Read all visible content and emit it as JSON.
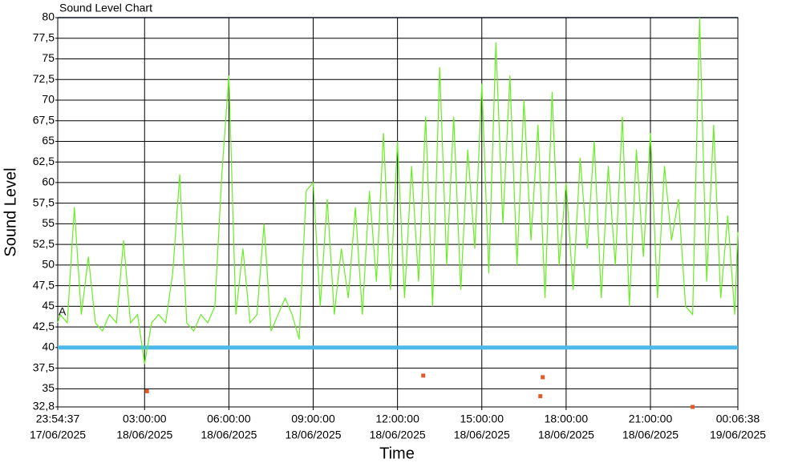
{
  "chart_data": {
    "type": "line",
    "title": "Sound Level Chart",
    "ylabel": "Sound Level",
    "xlabel": "Time",
    "xlim": [
      "2025-06-17T23:54:37",
      "2025-06-19T00:06:38"
    ],
    "xticks": [
      {
        "value": "2025-06-17T23:54:37",
        "label": [
          "23:54:37",
          "17/06/2025"
        ]
      },
      {
        "value": "2025-06-18T03:00:00",
        "label": [
          "03:00:00",
          "18/06/2025"
        ]
      },
      {
        "value": "2025-06-18T06:00:00",
        "label": [
          "06:00:00",
          "18/06/2025"
        ]
      },
      {
        "value": "2025-06-18T09:00:00",
        "label": [
          "09:00:00",
          "18/06/2025"
        ]
      },
      {
        "value": "2025-06-18T12:00:00",
        "label": [
          "12:00:00",
          "18/06/2025"
        ]
      },
      {
        "value": "2025-06-18T15:00:00",
        "label": [
          "15:00:00",
          "18/06/2025"
        ]
      },
      {
        "value": "2025-06-18T18:00:00",
        "label": [
          "18:00:00",
          "18/06/2025"
        ]
      },
      {
        "value": "2025-06-18T21:00:00",
        "label": [
          "21:00:00",
          "18/06/2025"
        ]
      },
      {
        "value": "2025-06-19T00:06:38",
        "label": [
          "00:06:38",
          "19/06/2025"
        ]
      }
    ],
    "ylim": [
      32.8,
      80
    ],
    "yticks": [
      {
        "value": 32.8,
        "label": "32,8"
      },
      35,
      {
        "value": 37.5,
        "label": "37,5"
      },
      40,
      {
        "value": 42.5,
        "label": "42,5"
      },
      45,
      {
        "value": 47.5,
        "label": "47,5"
      },
      50,
      {
        "value": 52.5,
        "label": "52,5"
      },
      55,
      {
        "value": 57.5,
        "label": "57,5"
      },
      60,
      {
        "value": 62.5,
        "label": "62,5"
      },
      65,
      {
        "value": 67.5,
        "label": "67,5"
      },
      70,
      {
        "value": 72.5,
        "label": "72,5"
      },
      75,
      {
        "value": 77.5,
        "label": "77,5"
      },
      80
    ],
    "grid": true,
    "threshold": {
      "value": 40,
      "color": "#4ab8e8",
      "label": "A"
    },
    "x": [
      "2025-06-17T23:54:37",
      "2025-06-18T00:00:00",
      "2025-06-18T00:15:00",
      "2025-06-18T00:30:00",
      "2025-06-18T00:45:00",
      "2025-06-18T01:00:00",
      "2025-06-18T01:15:00",
      "2025-06-18T01:30:00",
      "2025-06-18T01:45:00",
      "2025-06-18T02:00:00",
      "2025-06-18T02:15:00",
      "2025-06-18T02:30:00",
      "2025-06-18T02:45:00",
      "2025-06-18T03:00:00",
      "2025-06-18T03:15:00",
      "2025-06-18T03:30:00",
      "2025-06-18T03:45:00",
      "2025-06-18T04:00:00",
      "2025-06-18T04:15:00",
      "2025-06-18T04:30:00",
      "2025-06-18T04:45:00",
      "2025-06-18T05:00:00",
      "2025-06-18T05:15:00",
      "2025-06-18T05:30:00",
      "2025-06-18T05:45:00",
      "2025-06-18T06:00:00",
      "2025-06-18T06:15:00",
      "2025-06-18T06:30:00",
      "2025-06-18T06:45:00",
      "2025-06-18T07:00:00",
      "2025-06-18T07:15:00",
      "2025-06-18T07:30:00",
      "2025-06-18T07:45:00",
      "2025-06-18T08:00:00",
      "2025-06-18T08:15:00",
      "2025-06-18T08:30:00",
      "2025-06-18T08:45:00",
      "2025-06-18T09:00:00",
      "2025-06-18T09:15:00",
      "2025-06-18T09:30:00",
      "2025-06-18T09:45:00",
      "2025-06-18T10:00:00",
      "2025-06-18T10:15:00",
      "2025-06-18T10:30:00",
      "2025-06-18T10:45:00",
      "2025-06-18T11:00:00",
      "2025-06-18T11:15:00",
      "2025-06-18T11:30:00",
      "2025-06-18T11:45:00",
      "2025-06-18T12:00:00",
      "2025-06-18T12:15:00",
      "2025-06-18T12:30:00",
      "2025-06-18T12:45:00",
      "2025-06-18T13:00:00",
      "2025-06-18T13:15:00",
      "2025-06-18T13:30:00",
      "2025-06-18T13:45:00",
      "2025-06-18T14:00:00",
      "2025-06-18T14:15:00",
      "2025-06-18T14:30:00",
      "2025-06-18T14:45:00",
      "2025-06-18T15:00:00",
      "2025-06-18T15:15:00",
      "2025-06-18T15:30:00",
      "2025-06-18T15:45:00",
      "2025-06-18T16:00:00",
      "2025-06-18T16:15:00",
      "2025-06-18T16:30:00",
      "2025-06-18T16:45:00",
      "2025-06-18T17:00:00",
      "2025-06-18T17:15:00",
      "2025-06-18T17:30:00",
      "2025-06-18T17:45:00",
      "2025-06-18T18:00:00",
      "2025-06-18T18:15:00",
      "2025-06-18T18:30:00",
      "2025-06-18T18:45:00",
      "2025-06-18T19:00:00",
      "2025-06-18T19:15:00",
      "2025-06-18T19:30:00",
      "2025-06-18T19:45:00",
      "2025-06-18T20:00:00",
      "2025-06-18T20:15:00",
      "2025-06-18T20:30:00",
      "2025-06-18T20:45:00",
      "2025-06-18T21:00:00",
      "2025-06-18T21:15:00",
      "2025-06-18T21:30:00",
      "2025-06-18T21:45:00",
      "2025-06-18T22:00:00",
      "2025-06-18T22:15:00",
      "2025-06-18T22:30:00",
      "2025-06-18T22:45:00",
      "2025-06-18T23:00:00",
      "2025-06-18T23:15:00",
      "2025-06-18T23:30:00",
      "2025-06-18T23:45:00",
      "2025-06-19T00:00:00",
      "2025-06-19T00:06:38"
    ],
    "series": [
      {
        "color": "#66ee22",
        "values": [
          43,
          44,
          43,
          57,
          44,
          51,
          43,
          42,
          44,
          43,
          53,
          43,
          44,
          38,
          43,
          44,
          43,
          49,
          61,
          43,
          42,
          44,
          43,
          45,
          61,
          73,
          44,
          52,
          43,
          44,
          55,
          42,
          44,
          46,
          44,
          41,
          59,
          60,
          45,
          58,
          44,
          52,
          46,
          57,
          44,
          59,
          48,
          66,
          47,
          65,
          46,
          62,
          48,
          68,
          45,
          74,
          50,
          68,
          47,
          64,
          52,
          72,
          49,
          77,
          55,
          73,
          50,
          70,
          53,
          67,
          46,
          71,
          50,
          60,
          47,
          63,
          52,
          65,
          46,
          62,
          50,
          68,
          45,
          64,
          51,
          66,
          46,
          62,
          53,
          58,
          45,
          44,
          80,
          48,
          67,
          46,
          56,
          44,
          54
        ]
      }
    ],
    "markers": {
      "color": "#e05a2a",
      "x": [
        "2025-06-18T03:05:00",
        "2025-06-18T12:55:00",
        "2025-06-18T17:05:00",
        "2025-06-18T17:10:00",
        "2025-06-18T22:30:00"
      ],
      "values": [
        34.7,
        36.6,
        34.1,
        36.4,
        32.8
      ]
    }
  }
}
